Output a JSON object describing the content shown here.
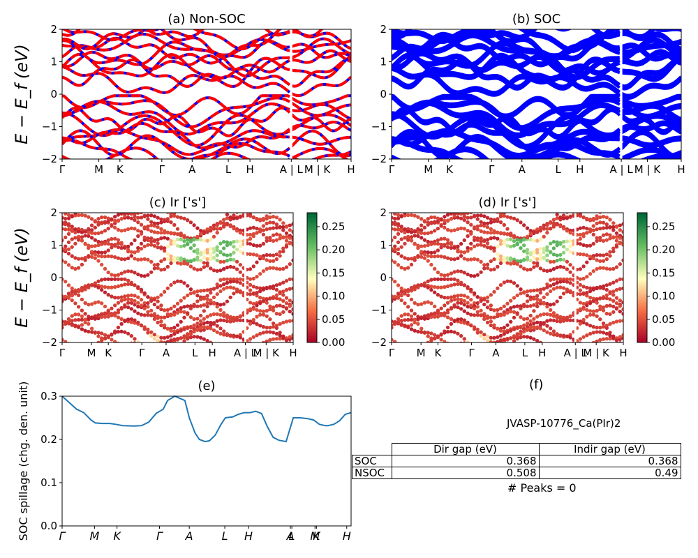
{
  "chart_data": [
    {
      "type": "line",
      "panel": "a",
      "title": "(a) Non-SOC",
      "ylabel": "E − E_f (eV)",
      "ylim": [
        -2,
        2
      ],
      "yticks": [
        "2",
        "1",
        "0",
        "−1",
        "−2"
      ],
      "xtick_labels": [
        "Γ",
        "M",
        "K",
        "Γ",
        "A",
        "L",
        "H",
        "A | L",
        "M | K",
        "H"
      ],
      "series": [
        {
          "name": "",
          "color": "#ff0000",
          "style": "dashed over blue",
          "x": [
            0,
            1,
            2,
            3,
            4,
            5,
            6,
            7,
            8,
            9
          ],
          "y": [
            -0.2,
            -0.3,
            -0.25,
            -0.15,
            -0.7,
            -0.6,
            -0.4,
            -0.2,
            -0.05,
            -0.1
          ]
        }
      ]
    },
    {
      "type": "line",
      "panel": "b",
      "title": "(b) SOC",
      "ylim": [
        -2,
        2
      ],
      "yticks": [
        "2",
        "1",
        "0",
        "−1",
        "−2"
      ],
      "xtick_labels": [
        "Γ",
        "M",
        "K",
        "Γ",
        "A",
        "L",
        "H",
        "A | L",
        "M | K",
        "H"
      ],
      "series": [
        {
          "name": "",
          "color": "#0000ff",
          "x": [
            0,
            1,
            2,
            3,
            4,
            5,
            6,
            7,
            8,
            9
          ],
          "y": [
            -0.1,
            -0.2,
            -0.2,
            -0.1,
            -0.7,
            -0.55,
            -0.35,
            -0.2,
            -0.05,
            -0.1
          ]
        }
      ]
    },
    {
      "type": "scatter",
      "panel": "c",
      "title": "(c)  Ir ['s']",
      "ylabel": "E − E_f (eV)",
      "ylim": [
        -2,
        2
      ],
      "yticks": [
        "2",
        "1",
        "0",
        "−1",
        "−2"
      ],
      "xtick_labels": [
        "Γ",
        "M",
        "K",
        "Γ",
        "A",
        "L",
        "H",
        "A | L",
        "M | K",
        "H"
      ],
      "colorbar": {
        "range": [
          0,
          0.28
        ],
        "ticks": [
          "0.25",
          "0.20",
          "0.15",
          "0.10",
          "0.05",
          "0.00"
        ],
        "colormap": "RdYlGn"
      }
    },
    {
      "type": "scatter",
      "panel": "d",
      "title": "(d) Ir ['s']",
      "ylim": [
        -2,
        2
      ],
      "yticks": [
        "2",
        "1",
        "0",
        "−1",
        "−2"
      ],
      "xtick_labels": [
        "Γ",
        "M",
        "K",
        "Γ",
        "A",
        "L",
        "H",
        "A | L",
        "M | K",
        "H"
      ],
      "colorbar": {
        "range": [
          0,
          0.28
        ],
        "ticks": [
          "0.25",
          "0.20",
          "0.15",
          "0.10",
          "0.05",
          "0.00"
        ],
        "colormap": "RdYlGn"
      }
    },
    {
      "type": "line",
      "panel": "e",
      "title": "(e)",
      "ylabel": "SOC spillage (chg. den. unit)",
      "ylim": [
        0,
        0.3
      ],
      "yticks": [
        "0.3",
        "0.2",
        "0.1",
        "0.0"
      ],
      "xtick_labels": [
        "Γ",
        "M",
        "K",
        "Γ",
        "A",
        "L",
        "H",
        "A",
        "L",
        "M",
        "K",
        "H"
      ],
      "series": [
        {
          "name": "",
          "color": "#1f77b4",
          "x": [
            0,
            0.05,
            0.1,
            0.15,
            0.2,
            0.23,
            0.28,
            0.33,
            0.37,
            0.42,
            0.5,
            0.55,
            0.6,
            0.65,
            0.7,
            0.73,
            0.78,
            0.85,
            0.88,
            0.92,
            0.95,
            0.99,
            1.02,
            1.06,
            1.1,
            1.13,
            1.18,
            1.22,
            1.26,
            1.28,
            1.3,
            1.34,
            1.38,
            1.42,
            1.46,
            1.5,
            1.55,
            1.6,
            1.65,
            1.7,
            1.74,
            1.78,
            1.82,
            1.84,
            1.88,
            1.92,
            1.96,
            2.0
          ],
          "y": [
            0.3,
            0.285,
            0.27,
            0.262,
            0.245,
            0.238,
            0.237,
            0.237,
            0.235,
            0.232,
            0.231,
            0.232,
            0.24,
            0.26,
            0.27,
            0.29,
            0.3,
            0.29,
            0.25,
            0.215,
            0.2,
            0.195,
            0.197,
            0.21,
            0.235,
            0.25,
            0.252,
            0.258,
            0.262,
            0.262,
            0.262,
            0.265,
            0.26,
            0.23,
            0.205,
            0.198,
            0.195,
            0.25,
            0.25,
            0.248,
            0.245,
            0.235,
            0.232,
            0.232,
            0.235,
            0.243,
            0.258,
            0.262
          ]
        }
      ]
    }
  ],
  "panel_f": {
    "title": "(f)",
    "material": "JVASP-10776_Ca(PIr)2",
    "table": {
      "headers": [
        "Dir gap (eV)",
        "Indir gap (eV)"
      ],
      "rows": [
        {
          "label": "SOC",
          "dir": "0.368",
          "indir": "0.368"
        },
        {
          "label": "NSOC",
          "dir": "0.508",
          "indir": "0.49"
        }
      ]
    },
    "peaks": "# Peaks = 0"
  }
}
